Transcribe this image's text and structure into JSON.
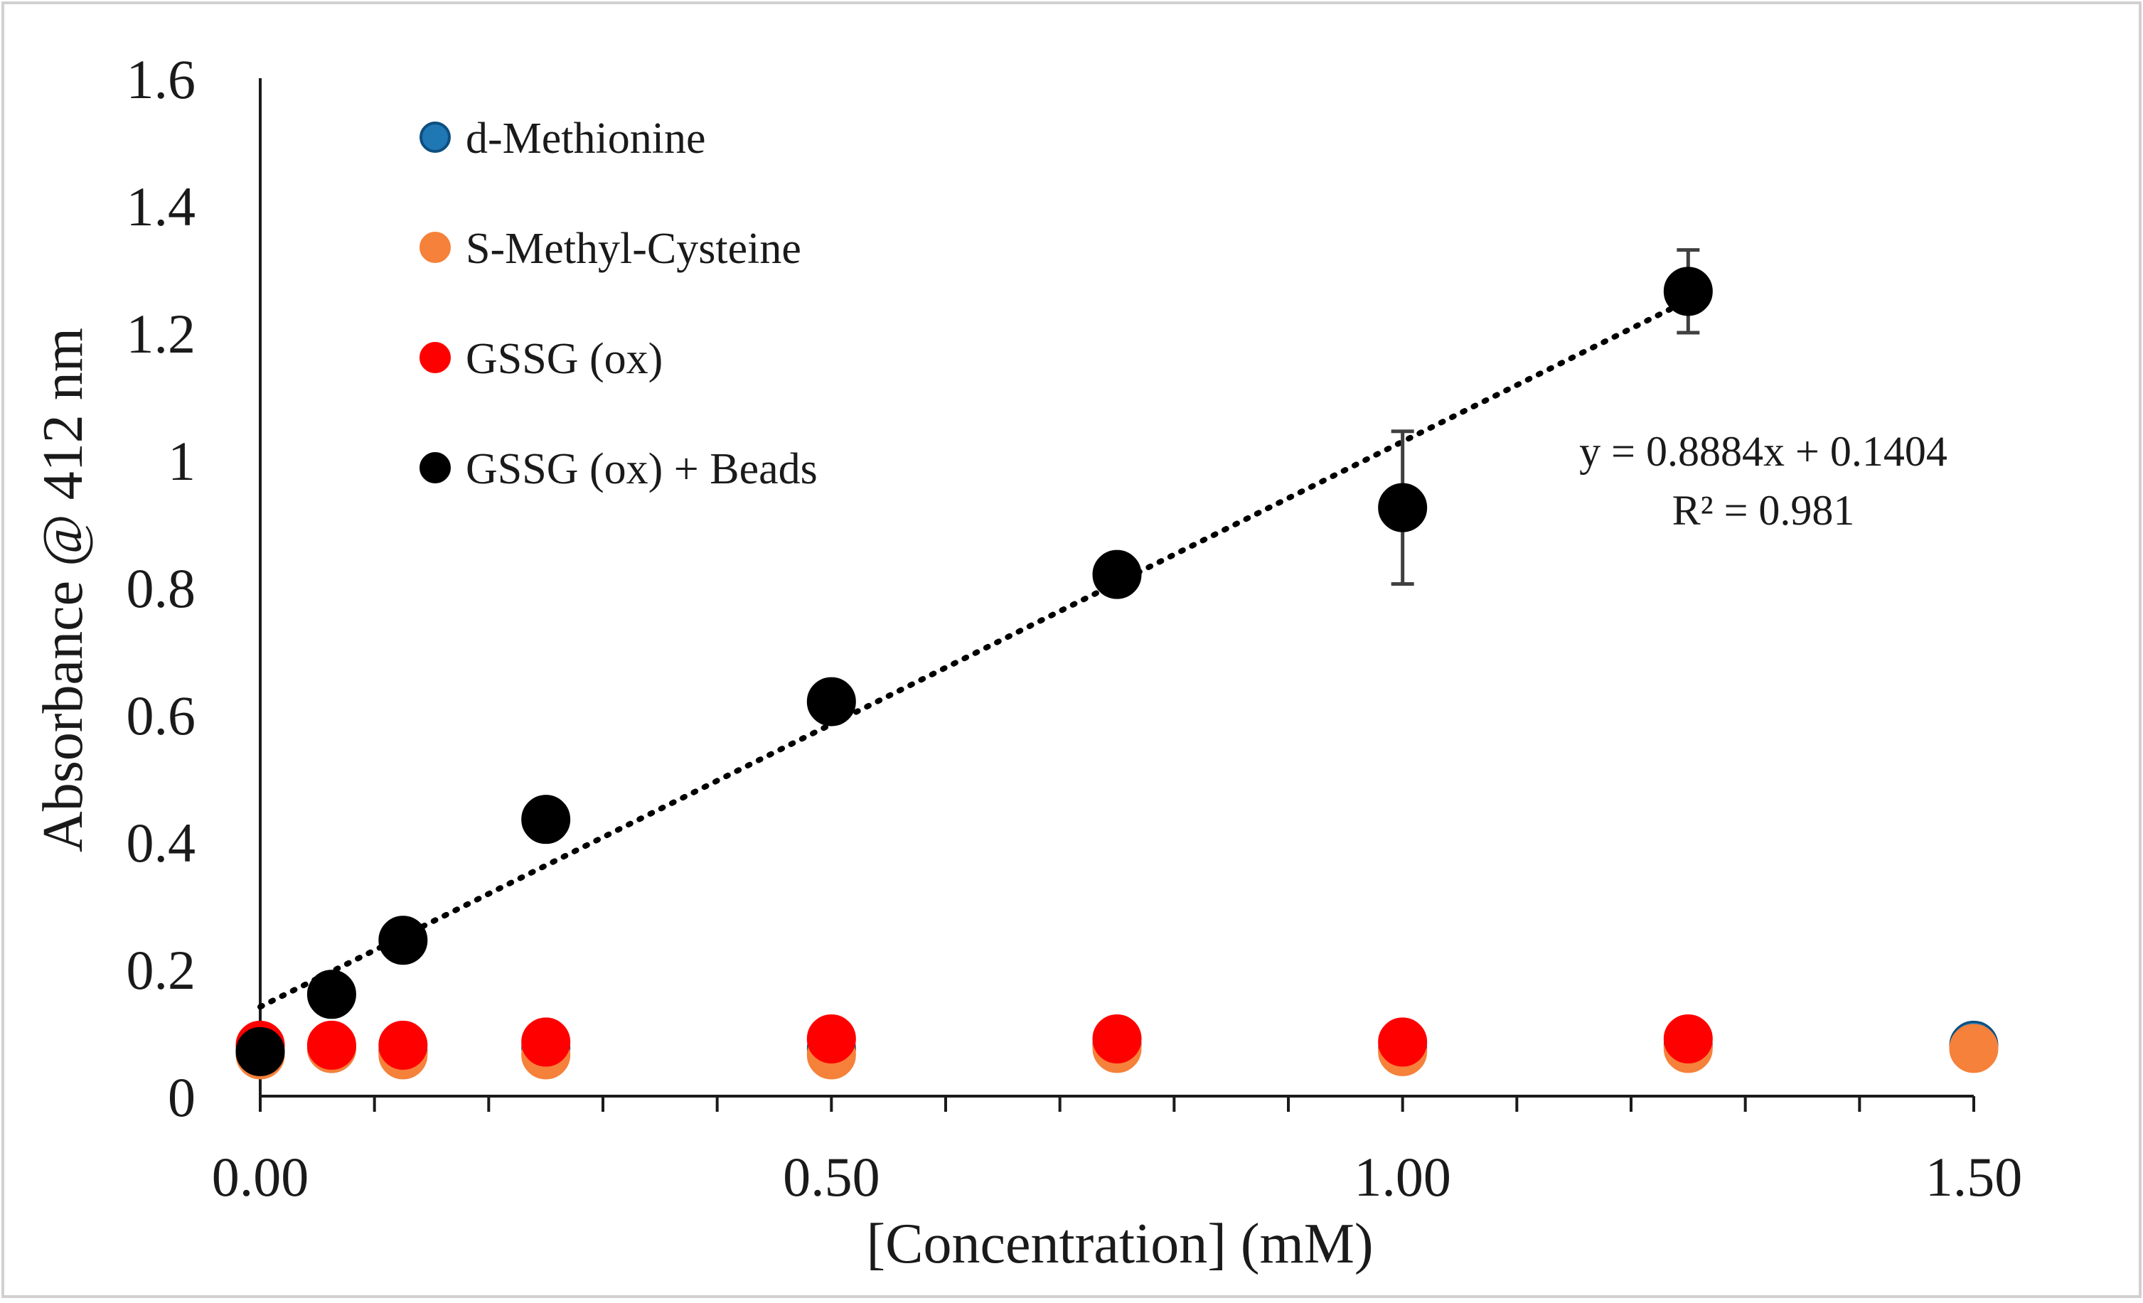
{
  "chart_data": {
    "type": "scatter",
    "title": "",
    "xlabel": "[Concentration] (mM)",
    "ylabel": "Absorbance @ 412 nm",
    "xlim": [
      0,
      1.5
    ],
    "ylim": [
      0,
      1.6
    ],
    "x_ticks": [
      "0.00",
      "0.50",
      "1.00",
      "1.50"
    ],
    "x_tick_values": [
      0,
      0.5,
      1.0,
      1.5
    ],
    "x_minor_step": 0.1,
    "y_ticks": [
      "0",
      "0.2",
      "0.4",
      "0.6",
      "0.8",
      "1",
      "1.2",
      "1.4",
      "1.6"
    ],
    "y_tick_values": [
      0,
      0.2,
      0.4,
      0.6,
      0.8,
      1.0,
      1.2,
      1.4,
      1.6
    ],
    "grid": false,
    "legend_position": "top-left",
    "series": [
      {
        "name": "d-Methionine",
        "color": "#1f77b4",
        "stroke": "#0d4f80",
        "x": [
          0,
          0.0625,
          0.125,
          0.25,
          0.5,
          0.75,
          1.0,
          1.25,
          1.5
        ],
        "y": [
          0.07,
          0.075,
          0.07,
          0.075,
          0.075,
          0.08,
          0.075,
          0.08,
          0.08
        ]
      },
      {
        "name": "S-Methyl-Cysteine",
        "color": "#f5813a",
        "stroke": "#f5813a",
        "x": [
          0,
          0.0625,
          0.125,
          0.25,
          0.5,
          0.75,
          1.0,
          1.25,
          1.5
        ],
        "y": [
          0.065,
          0.075,
          0.065,
          0.065,
          0.065,
          0.075,
          0.07,
          0.075,
          0.075
        ]
      },
      {
        "name": "GSSG (ox)",
        "color": "#ff0000",
        "stroke": "#ff0000",
        "x": [
          0,
          0.0625,
          0.125,
          0.25,
          0.5,
          0.75,
          1.0,
          1.25
        ],
        "y": [
          0.08,
          0.08,
          0.08,
          0.085,
          0.09,
          0.09,
          0.085,
          0.09
        ]
      },
      {
        "name": "GSSG (ox) + Beads",
        "color": "#000000",
        "stroke": "#000000",
        "x": [
          0,
          0.0625,
          0.125,
          0.25,
          0.5,
          0.75,
          1.0,
          1.25
        ],
        "y": [
          0.07,
          0.16,
          0.245,
          0.435,
          0.62,
          0.82,
          0.925,
          1.265
        ],
        "error": [
          0,
          0,
          0,
          0,
          0,
          0,
          0.12,
          0.065
        ]
      }
    ],
    "trendline": {
      "series": "GSSG (ox) + Beads",
      "slope": 0.8884,
      "intercept": 0.1404,
      "x_range": [
        0,
        1.25
      ],
      "equation": "y = 0.8884x + 0.1404",
      "r_squared": "R² = 0.981"
    }
  }
}
